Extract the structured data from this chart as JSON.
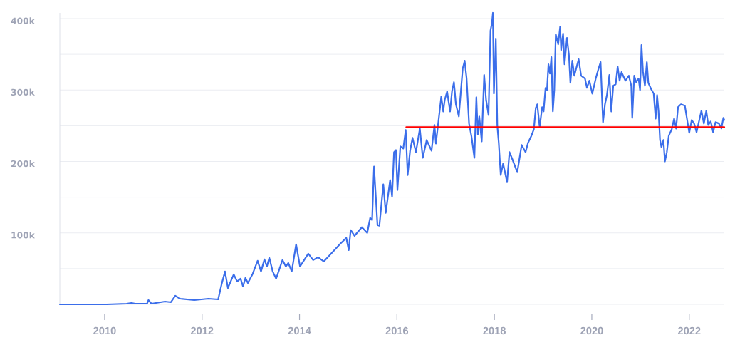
{
  "chart_data": {
    "type": "line",
    "x": [
      2009.08,
      2010.04,
      2010.45,
      2010.55,
      2010.63,
      2010.87,
      2010.9,
      2010.96,
      2011.24,
      2011.36,
      2011.45,
      2011.55,
      2011.84,
      2012.13,
      2012.33,
      2012.4,
      2012.47,
      2012.53,
      2012.65,
      2012.72,
      2012.79,
      2012.84,
      2012.89,
      2012.94,
      2013.04,
      2013.14,
      2013.21,
      2013.28,
      2013.33,
      2013.38,
      2013.45,
      2013.52,
      2013.65,
      2013.72,
      2013.77,
      2013.84,
      2013.93,
      2014.01,
      2014.18,
      2014.28,
      2014.38,
      2014.5,
      2014.65,
      2014.84,
      2014.96,
      2015.01,
      2015.05,
      2015.13,
      2015.28,
      2015.39,
      2015.45,
      2015.49,
      2015.53,
      2015.6,
      2015.64,
      2015.72,
      2015.77,
      2015.86,
      2015.9,
      2015.94,
      2015.98,
      2016.01,
      2016.07,
      2016.13,
      2016.18,
      2016.22,
      2016.27,
      2016.32,
      2016.39,
      2016.47,
      2016.53,
      2016.61,
      2016.71,
      2016.77,
      2016.8,
      2016.86,
      2016.91,
      2016.95,
      2016.98,
      2017.03,
      2017.09,
      2017.13,
      2017.17,
      2017.21,
      2017.27,
      2017.35,
      2017.39,
      2017.43,
      2017.48,
      2017.53,
      2017.59,
      2017.63,
      2017.66,
      2017.69,
      2017.74,
      2017.79,
      2017.83,
      2017.88,
      2017.92,
      2017.95,
      2017.97,
      2017.99,
      2018.03,
      2018.06,
      2018.09,
      2018.13,
      2018.18,
      2018.26,
      2018.31,
      2018.37,
      2018.47,
      2018.56,
      2018.64,
      2018.69,
      2018.76,
      2018.81,
      2018.85,
      2018.88,
      2018.93,
      2018.98,
      2019.01,
      2019.05,
      2019.08,
      2019.11,
      2019.14,
      2019.17,
      2019.2,
      2019.23,
      2019.26,
      2019.31,
      2019.35,
      2019.37,
      2019.41,
      2019.44,
      2019.49,
      2019.53,
      2019.56,
      2019.6,
      2019.64,
      2019.69,
      2019.73,
      2019.78,
      2019.86,
      2019.9,
      2019.95,
      2020.01,
      2020.08,
      2020.13,
      2020.18,
      2020.23,
      2020.27,
      2020.31,
      2020.36,
      2020.4,
      2020.44,
      2020.49,
      2020.53,
      2020.57,
      2020.61,
      2020.69,
      2020.76,
      2020.81,
      2020.83,
      2020.87,
      2020.91,
      2020.96,
      2020.99,
      2021.02,
      2021.05,
      2021.09,
      2021.13,
      2021.16,
      2021.22,
      2021.27,
      2021.31,
      2021.34,
      2021.37,
      2021.4,
      2021.43,
      2021.47,
      2021.5,
      2021.54,
      2021.58,
      2021.64,
      2021.69,
      2021.73,
      2021.77,
      2021.83,
      2021.91,
      2021.95,
      2022.0,
      2022.05,
      2022.1,
      2022.15,
      2022.2,
      2022.25,
      2022.3,
      2022.35,
      2022.39,
      2022.44,
      2022.49,
      2022.54,
      2022.61,
      2022.66,
      2022.7,
      2022.72
    ],
    "series": [
      {
        "color": "#3b6eea",
        "values": [
          0,
          0,
          1000,
          2000,
          1000,
          1000,
          6000,
          1000,
          4000,
          3000,
          12000,
          8000,
          6000,
          8000,
          7000,
          28000,
          46000,
          23000,
          42000,
          32000,
          36000,
          25000,
          37000,
          30000,
          43000,
          61000,
          46000,
          63000,
          53000,
          65000,
          46000,
          36000,
          62000,
          53000,
          58000,
          46000,
          84000,
          53000,
          71000,
          62000,
          66000,
          60000,
          71000,
          85000,
          93000,
          76000,
          104000,
          96000,
          108000,
          100000,
          121000,
          118000,
          193000,
          111000,
          110000,
          168000,
          128000,
          174000,
          151000,
          213000,
          216000,
          160000,
          221000,
          218000,
          244000,
          181000,
          215000,
          233000,
          213000,
          246000,
          205000,
          230000,
          215000,
          251000,
          225000,
          261000,
          291000,
          270000,
          286000,
          298000,
          270000,
          298000,
          311000,
          280000,
          263000,
          330000,
          341000,
          316000,
          253000,
          235000,
          205000,
          290000,
          238000,
          263000,
          228000,
          321000,
          286000,
          265000,
          383000,
          394000,
          408000,
          295000,
          371000,
          250000,
          226000,
          181000,
          197000,
          171000,
          213000,
          203000,
          185000,
          223000,
          213000,
          226000,
          236000,
          245000,
          275000,
          280000,
          248000,
          276000,
          270000,
          303000,
          300000,
          336000,
          323000,
          346000,
          270000,
          300000,
          378000,
          364000,
          389000,
          356000,
          379000,
          336000,
          373000,
          349000,
          310000,
          341000,
          320000,
          333000,
          343000,
          320000,
          316000,
          303000,
          313000,
          295000,
          316000,
          328000,
          339000,
          255000,
          280000,
          293000,
          321000,
          270000,
          306000,
          308000,
          333000,
          313000,
          325000,
          313000,
          320000,
          306000,
          261000,
          320000,
          311000,
          316000,
          300000,
          363000,
          326000,
          306000,
          339000,
          310000,
          301000,
          295000,
          260000,
          293000,
          270000,
          230000,
          220000,
          230000,
          200000,
          213000,
          236000,
          245000,
          260000,
          246000,
          276000,
          280000,
          278000,
          261000,
          240000,
          258000,
          253000,
          241000,
          256000,
          271000,
          253000,
          271000,
          251000,
          256000,
          241000,
          255000,
          253000,
          246000,
          261000,
          258000
        ]
      },
      {
        "type": "line",
        "x": [
          2016.19,
          2022.72
        ],
        "color": "#ff0000",
        "values": [
          248000,
          248000
        ]
      }
    ],
    "xlim": [
      2009.08,
      2022.72
    ],
    "xticks": [
      2010,
      2012,
      2014,
      2016,
      2018,
      2020,
      2022
    ],
    "ylim": [
      0,
      408000
    ],
    "yticks": [
      {
        "value": 0,
        "label": null
      },
      {
        "value": 50000,
        "label": null
      },
      {
        "value": 100000,
        "label": "100k"
      },
      {
        "value": 150000,
        "label": null
      },
      {
        "value": 200000,
        "label": "200k"
      },
      {
        "value": 250000,
        "label": null
      },
      {
        "value": 300000,
        "label": "300k"
      },
      {
        "value": 350000,
        "label": null
      },
      {
        "value": 400000,
        "label": "400k"
      }
    ],
    "grid": "y"
  }
}
